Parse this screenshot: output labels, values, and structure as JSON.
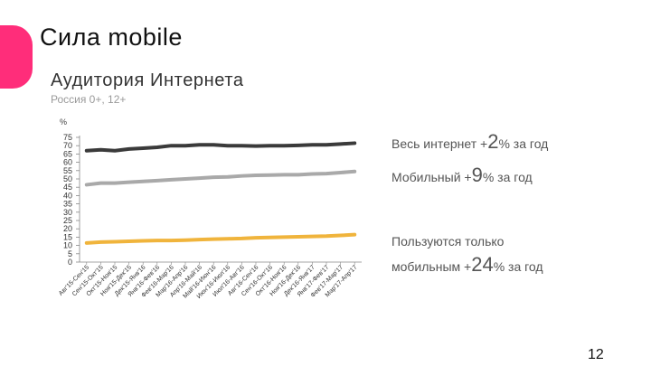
{
  "slide": {
    "title": "Сила mobile",
    "page_number": "12",
    "accent_color": "#ff2d7a"
  },
  "annotations": {
    "total": {
      "prefix": "Весь интернет +",
      "value": "2",
      "suffix": "% за год"
    },
    "mobile": {
      "prefix": "Мобильный +",
      "value": "9",
      "suffix": "% за год"
    },
    "mobile_only": {
      "line1": "Пользуются только",
      "prefix": "мобильным +",
      "value": "24",
      "suffix": "% за год"
    }
  },
  "chart_data": {
    "type": "line",
    "title": "Аудитория Интернета",
    "subtitle": "Россия 0+, 12+",
    "ylabel": "%",
    "ylim": [
      0,
      75
    ],
    "yticks": [
      0,
      5,
      10,
      15,
      20,
      25,
      30,
      35,
      40,
      45,
      50,
      55,
      60,
      65,
      70,
      75
    ],
    "categories": [
      "Авг'15-Сен'15",
      "Сен'15-Окт'15",
      "Окт'15-Ноя'15",
      "Ноя'15-Дек'15",
      "Дек'15-Янв'16",
      "Янв'16-Фев'16",
      "Фев'16-Мар'16",
      "Мар'16-Апр'16",
      "Апр'16-Май'16",
      "Май'16-Июн'16",
      "Июн'16-Июл'16",
      "Июл'16-Авг'16",
      "Авг'16-Сен'16",
      "Сен'16-Окт'16",
      "Окт'16-Ноя'16",
      "Ноя'16-Дек'16",
      "Дек'16-Янв'17",
      "Янв'17-Фев'17",
      "Фев'17-Мар'17",
      "Мар'17-Апр'17"
    ],
    "series": [
      {
        "color": "#3a3a3a",
        "values": [
          67,
          67.5,
          67,
          68,
          68.5,
          69,
          70,
          70,
          70.5,
          70.5,
          70,
          70,
          69.8,
          70,
          70,
          70.2,
          70.5,
          70.5,
          71,
          71.5
        ]
      },
      {
        "color": "#a9a9a9",
        "values": [
          46.5,
          47.5,
          47.5,
          48,
          48.5,
          49,
          49.5,
          50,
          50.5,
          51,
          51.2,
          51.8,
          52.2,
          52.3,
          52.5,
          52.5,
          53,
          53.2,
          53.8,
          54.5
        ]
      },
      {
        "color": "#f0b43c",
        "values": [
          11.5,
          12,
          12.2,
          12.5,
          12.8,
          13,
          13,
          13.2,
          13.5,
          13.8,
          14,
          14.2,
          14.6,
          14.8,
          15,
          15.2,
          15.4,
          15.6,
          16,
          16.5
        ]
      }
    ]
  }
}
